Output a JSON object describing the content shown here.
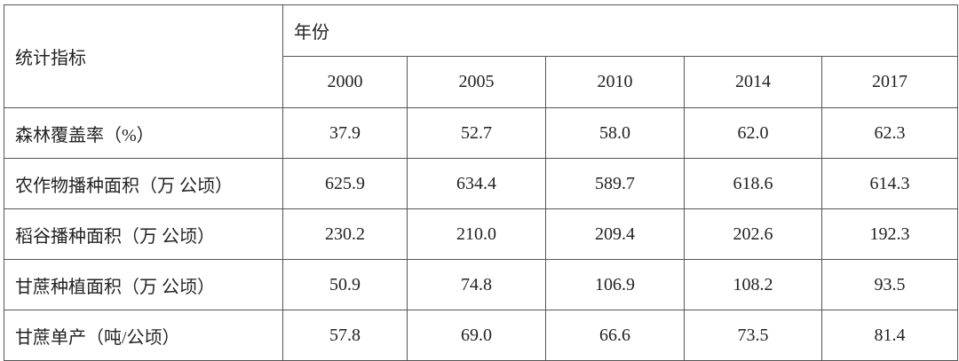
{
  "table": {
    "header": {
      "label": "统计指标",
      "group": "年份",
      "years": [
        "2000",
        "2005",
        "2010",
        "2014",
        "2017"
      ]
    },
    "rows": [
      {
        "label": "森林覆盖率（%）",
        "values": [
          "37.9",
          "52.7",
          "58.0",
          "62.0",
          "62.3"
        ]
      },
      {
        "label": "农作物播种面积（万 公顷）",
        "values": [
          "625.9",
          "634.4",
          "589.7",
          "618.6",
          "614.3"
        ]
      },
      {
        "label": "稻谷播种面积（万 公顷）",
        "values": [
          "230.2",
          "210.0",
          "209.4",
          "202.6",
          "192.3"
        ]
      },
      {
        "label": "甘蔗种植面积（万 公顷）",
        "values": [
          "50.9",
          "74.8",
          "106.9",
          "108.2",
          "93.5"
        ]
      },
      {
        "label": "甘蔗单产（吨/公顷）",
        "values": [
          "57.8",
          "69.0",
          "66.6",
          "73.5",
          "81.4"
        ]
      }
    ]
  }
}
